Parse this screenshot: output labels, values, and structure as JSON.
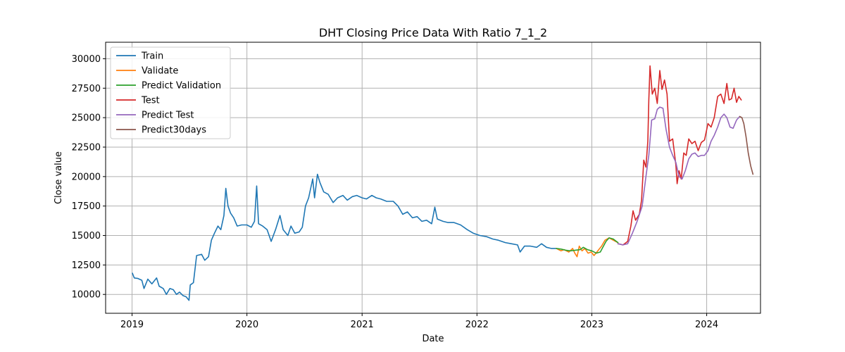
{
  "chart_data": {
    "type": "line",
    "title": "DHT Closing Price Data With Ratio 7_1_2",
    "xlabel": "Date",
    "ylabel": "Close value",
    "xlim": [
      "2018-10-09",
      "2024-06-20"
    ],
    "ylim": [
      8400,
      31400
    ],
    "x_ticks": [
      "2019",
      "2020",
      "2021",
      "2022",
      "2023",
      "2024"
    ],
    "y_ticks": [
      10000,
      12500,
      15000,
      17500,
      20000,
      22500,
      25000,
      27500,
      30000
    ],
    "y_tick_labels": [
      "10000",
      "12500",
      "15000",
      "17500",
      "20000",
      "22500",
      "25000",
      "27500",
      "30000"
    ],
    "grid": true,
    "legend_position": "top-left",
    "series": [
      {
        "name": "Train",
        "color": "#1f77b4",
        "points": [
          [
            "2019-01-02",
            11800
          ],
          [
            "2019-01-08",
            11400
          ],
          [
            "2019-01-20",
            11350
          ],
          [
            "2019-02-01",
            11200
          ],
          [
            "2019-02-08",
            10500
          ],
          [
            "2019-02-20",
            11300
          ],
          [
            "2019-03-05",
            10900
          ],
          [
            "2019-03-20",
            11400
          ],
          [
            "2019-03-28",
            10700
          ],
          [
            "2019-04-10",
            10500
          ],
          [
            "2019-04-20",
            10000
          ],
          [
            "2019-05-01",
            10500
          ],
          [
            "2019-05-12",
            10400
          ],
          [
            "2019-05-22",
            10000
          ],
          [
            "2019-06-01",
            10200
          ],
          [
            "2019-06-12",
            9900
          ],
          [
            "2019-06-22",
            9800
          ],
          [
            "2019-07-01",
            9500
          ],
          [
            "2019-07-05",
            10800
          ],
          [
            "2019-07-15",
            11000
          ],
          [
            "2019-07-25",
            13300
          ],
          [
            "2019-08-10",
            13400
          ],
          [
            "2019-08-20",
            12900
          ],
          [
            "2019-09-01",
            13200
          ],
          [
            "2019-09-10",
            14600
          ],
          [
            "2019-09-20",
            15200
          ],
          [
            "2019-10-01",
            15800
          ],
          [
            "2019-10-10",
            15500
          ],
          [
            "2019-10-20",
            16700
          ],
          [
            "2019-10-26",
            19000
          ],
          [
            "2019-11-02",
            17500
          ],
          [
            "2019-11-10",
            16900
          ],
          [
            "2019-11-20",
            16500
          ],
          [
            "2019-12-01",
            15800
          ],
          [
            "2019-12-15",
            15900
          ],
          [
            "2020-01-01",
            15900
          ],
          [
            "2020-01-15",
            15700
          ],
          [
            "2020-01-25",
            16200
          ],
          [
            "2020-02-01",
            19200
          ],
          [
            "2020-02-07",
            16000
          ],
          [
            "2020-02-20",
            15800
          ],
          [
            "2020-03-05",
            15500
          ],
          [
            "2020-03-18",
            14500
          ],
          [
            "2020-04-01",
            15500
          ],
          [
            "2020-04-15",
            16700
          ],
          [
            "2020-04-25",
            15500
          ],
          [
            "2020-05-10",
            15000
          ],
          [
            "2020-05-20",
            15800
          ],
          [
            "2020-06-01",
            15200
          ],
          [
            "2020-06-15",
            15300
          ],
          [
            "2020-06-25",
            15700
          ],
          [
            "2020-07-05",
            17500
          ],
          [
            "2020-07-15",
            18200
          ],
          [
            "2020-07-28",
            19800
          ],
          [
            "2020-08-03",
            18200
          ],
          [
            "2020-08-12",
            20200
          ],
          [
            "2020-08-20",
            19500
          ],
          [
            "2020-09-01",
            18700
          ],
          [
            "2020-09-15",
            18500
          ],
          [
            "2020-10-01",
            17800
          ],
          [
            "2020-10-15",
            18200
          ],
          [
            "2020-11-01",
            18400
          ],
          [
            "2020-11-15",
            18000
          ],
          [
            "2020-12-01",
            18300
          ],
          [
            "2020-12-15",
            18400
          ],
          [
            "2021-01-01",
            18200
          ],
          [
            "2021-01-15",
            18100
          ],
          [
            "2021-02-01",
            18400
          ],
          [
            "2021-02-15",
            18200
          ],
          [
            "2021-03-01",
            18100
          ],
          [
            "2021-03-20",
            17900
          ],
          [
            "2021-04-10",
            17900
          ],
          [
            "2021-04-25",
            17500
          ],
          [
            "2021-05-10",
            16800
          ],
          [
            "2021-05-25",
            17000
          ],
          [
            "2021-06-10",
            16500
          ],
          [
            "2021-06-25",
            16600
          ],
          [
            "2021-07-10",
            16200
          ],
          [
            "2021-07-25",
            16300
          ],
          [
            "2021-08-10",
            16000
          ],
          [
            "2021-08-20",
            17400
          ],
          [
            "2021-08-28",
            16400
          ],
          [
            "2021-09-15",
            16200
          ],
          [
            "2021-10-01",
            16100
          ],
          [
            "2021-10-20",
            16100
          ],
          [
            "2021-11-10",
            15900
          ],
          [
            "2021-12-01",
            15500
          ],
          [
            "2021-12-20",
            15200
          ],
          [
            "2022-01-10",
            15000
          ],
          [
            "2022-02-01",
            14900
          ],
          [
            "2022-02-20",
            14700
          ],
          [
            "2022-03-10",
            14600
          ],
          [
            "2022-04-01",
            14400
          ],
          [
            "2022-04-20",
            14300
          ],
          [
            "2022-05-10",
            14200
          ],
          [
            "2022-05-18",
            13600
          ],
          [
            "2022-06-01",
            14100
          ],
          [
            "2022-06-20",
            14100
          ],
          [
            "2022-07-10",
            14000
          ],
          [
            "2022-07-25",
            14300
          ],
          [
            "2022-08-10",
            14000
          ],
          [
            "2022-08-25",
            13900
          ],
          [
            "2022-09-10",
            13900
          ]
        ]
      },
      {
        "name": "Validate",
        "color": "#ff7f0e",
        "points": [
          [
            "2022-09-10",
            13900
          ],
          [
            "2022-09-25",
            13700
          ],
          [
            "2022-10-05",
            13800
          ],
          [
            "2022-10-20",
            13600
          ],
          [
            "2022-11-01",
            13900
          ],
          [
            "2022-11-08",
            13500
          ],
          [
            "2022-11-15",
            13200
          ],
          [
            "2022-11-22",
            14100
          ],
          [
            "2022-12-01",
            13700
          ],
          [
            "2022-12-10",
            13900
          ],
          [
            "2022-12-20",
            13500
          ],
          [
            "2022-12-30",
            13600
          ],
          [
            "2023-01-08",
            13300
          ],
          [
            "2023-01-20",
            13700
          ],
          [
            "2023-02-01",
            14100
          ],
          [
            "2023-02-12",
            14600
          ],
          [
            "2023-02-25",
            14800
          ],
          [
            "2023-03-10",
            14600
          ],
          [
            "2023-03-25",
            14400
          ]
        ]
      },
      {
        "name": "Predict Validation",
        "color": "#2ca02c",
        "points": [
          [
            "2022-09-10",
            13900
          ],
          [
            "2022-09-25",
            13850
          ],
          [
            "2022-10-10",
            13750
          ],
          [
            "2022-10-25",
            13700
          ],
          [
            "2022-11-10",
            13750
          ],
          [
            "2022-11-25",
            13800
          ],
          [
            "2022-12-05",
            14000
          ],
          [
            "2022-12-18",
            13800
          ],
          [
            "2023-01-01",
            13700
          ],
          [
            "2023-01-15",
            13500
          ],
          [
            "2023-01-28",
            13600
          ],
          [
            "2023-02-05",
            14000
          ],
          [
            "2023-02-15",
            14500
          ],
          [
            "2023-02-25",
            14800
          ],
          [
            "2023-03-10",
            14700
          ],
          [
            "2023-03-25",
            14400
          ]
        ]
      },
      {
        "name": "Test",
        "color": "#d62728",
        "points": [
          [
            "2023-03-25",
            14300
          ],
          [
            "2023-04-10",
            14200
          ],
          [
            "2023-04-25",
            14500
          ],
          [
            "2023-05-05",
            15800
          ],
          [
            "2023-05-12",
            17100
          ],
          [
            "2023-05-20",
            16300
          ],
          [
            "2023-06-01",
            16800
          ],
          [
            "2023-06-08",
            18000
          ],
          [
            "2023-06-15",
            21400
          ],
          [
            "2023-06-22",
            20800
          ],
          [
            "2023-06-28",
            23000
          ],
          [
            "2023-07-01",
            26500
          ],
          [
            "2023-07-05",
            29400
          ],
          [
            "2023-07-12",
            27000
          ],
          [
            "2023-07-20",
            27500
          ],
          [
            "2023-07-28",
            26200
          ],
          [
            "2023-08-05",
            29000
          ],
          [
            "2023-08-12",
            27400
          ],
          [
            "2023-08-20",
            28200
          ],
          [
            "2023-08-28",
            27000
          ],
          [
            "2023-09-05",
            23000
          ],
          [
            "2023-09-15",
            23200
          ],
          [
            "2023-09-25",
            21000
          ],
          [
            "2023-09-29",
            19400
          ],
          [
            "2023-10-05",
            20500
          ],
          [
            "2023-10-12",
            19800
          ],
          [
            "2023-10-20",
            22000
          ],
          [
            "2023-10-28",
            21800
          ],
          [
            "2023-11-05",
            23200
          ],
          [
            "2023-11-15",
            22800
          ],
          [
            "2023-11-25",
            23000
          ],
          [
            "2023-12-05",
            22200
          ],
          [
            "2023-12-15",
            22900
          ],
          [
            "2023-12-25",
            23100
          ],
          [
            "2024-01-05",
            24500
          ],
          [
            "2024-01-15",
            24200
          ],
          [
            "2024-01-25",
            25000
          ],
          [
            "2024-02-05",
            26800
          ],
          [
            "2024-02-15",
            27000
          ],
          [
            "2024-02-25",
            26200
          ],
          [
            "2024-03-05",
            27900
          ],
          [
            "2024-03-12",
            26500
          ],
          [
            "2024-03-20",
            26600
          ],
          [
            "2024-03-28",
            27500
          ],
          [
            "2024-04-05",
            26300
          ],
          [
            "2024-04-12",
            26800
          ],
          [
            "2024-04-20",
            26500
          ]
        ]
      },
      {
        "name": "Predict Test",
        "color": "#9467bd",
        "points": [
          [
            "2023-03-25",
            14300
          ],
          [
            "2023-04-10",
            14200
          ],
          [
            "2023-04-25",
            14300
          ],
          [
            "2023-05-10",
            15200
          ],
          [
            "2023-05-25",
            16200
          ],
          [
            "2023-06-10",
            17500
          ],
          [
            "2023-06-22",
            20000
          ],
          [
            "2023-07-01",
            21800
          ],
          [
            "2023-07-10",
            24800
          ],
          [
            "2023-07-20",
            24900
          ],
          [
            "2023-07-28",
            25700
          ],
          [
            "2023-08-05",
            25900
          ],
          [
            "2023-08-15",
            25800
          ],
          [
            "2023-08-25",
            24000
          ],
          [
            "2023-09-05",
            22500
          ],
          [
            "2023-09-15",
            21800
          ],
          [
            "2023-09-25",
            21200
          ],
          [
            "2023-10-05",
            20000
          ],
          [
            "2023-10-15",
            19800
          ],
          [
            "2023-10-25",
            20500
          ],
          [
            "2023-11-05",
            21500
          ],
          [
            "2023-11-15",
            21900
          ],
          [
            "2023-11-25",
            22000
          ],
          [
            "2023-12-05",
            21700
          ],
          [
            "2023-12-15",
            21800
          ],
          [
            "2023-12-25",
            21800
          ],
          [
            "2024-01-05",
            22200
          ],
          [
            "2024-01-15",
            23000
          ],
          [
            "2024-01-25",
            23500
          ],
          [
            "2024-02-05",
            24200
          ],
          [
            "2024-02-15",
            25000
          ],
          [
            "2024-02-25",
            25300
          ],
          [
            "2024-03-05",
            25000
          ],
          [
            "2024-03-15",
            24200
          ],
          [
            "2024-03-25",
            24100
          ],
          [
            "2024-04-05",
            24800
          ],
          [
            "2024-04-15",
            25100
          ]
        ]
      },
      {
        "name": "Predict30days",
        "color": "#8c564b",
        "points": [
          [
            "2024-04-15",
            25100
          ],
          [
            "2024-04-22",
            25000
          ],
          [
            "2024-04-28",
            24500
          ],
          [
            "2024-05-05",
            23400
          ],
          [
            "2024-05-12",
            22000
          ],
          [
            "2024-05-20",
            20900
          ],
          [
            "2024-05-27",
            20200
          ]
        ]
      }
    ]
  }
}
